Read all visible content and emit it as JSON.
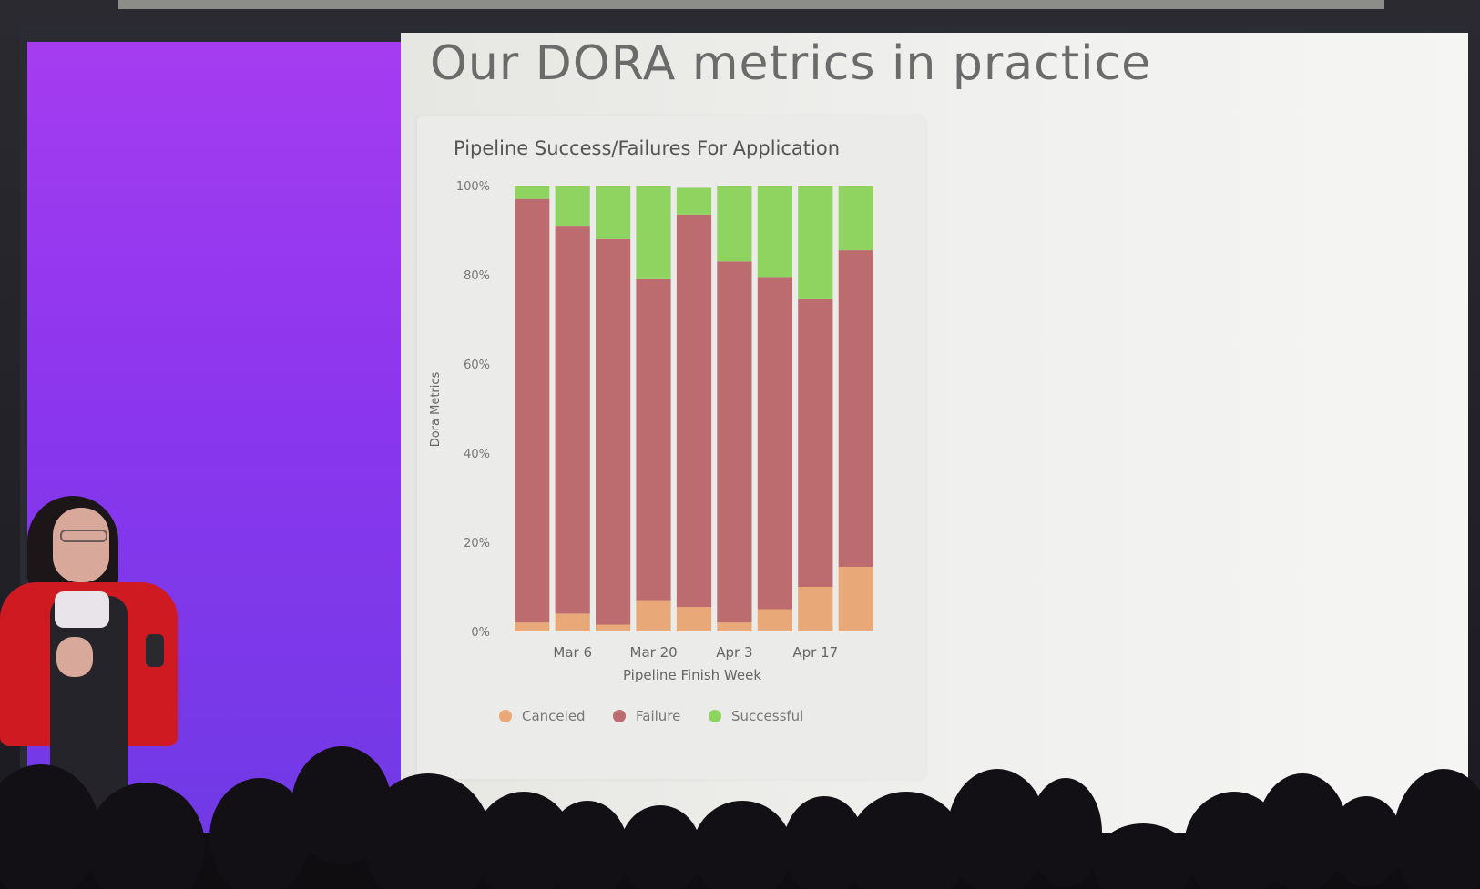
{
  "slide": {
    "title": "Our DORA metrics in practice",
    "background_color": "#efefed",
    "side_panel_color": "#8b36ee"
  },
  "chart_data": {
    "type": "bar",
    "stacked": true,
    "normalized_percent": true,
    "title": "Pipeline Success/Failures For Application",
    "xlabel": "Pipeline Finish Week",
    "ylabel": "Dora Metrics",
    "ylim": [
      0,
      100
    ],
    "y_ticks": [
      "0%",
      "20%",
      "40%",
      "60%",
      "80%",
      "100%"
    ],
    "x_tick_labels": [
      "Mar 6",
      "Mar 20",
      "Apr 3",
      "Apr 17"
    ],
    "x_tick_positions": [
      1,
      3,
      5,
      7
    ],
    "bar_count": 9,
    "legend_position": "bottom",
    "series": [
      {
        "name": "Canceled",
        "color": "#e8a877",
        "values": [
          2,
          4,
          1.5,
          7,
          5.5,
          2,
          5,
          10,
          14.5
        ]
      },
      {
        "name": "Failure",
        "color": "#bc6b6f",
        "values": [
          95,
          87,
          86.5,
          72,
          88,
          81,
          74.5,
          64.5,
          71
        ]
      },
      {
        "name": "Successful",
        "color": "#8fd460",
        "values": [
          3,
          9,
          12,
          21,
          6,
          17,
          20.5,
          25.5,
          14.5
        ]
      }
    ]
  }
}
